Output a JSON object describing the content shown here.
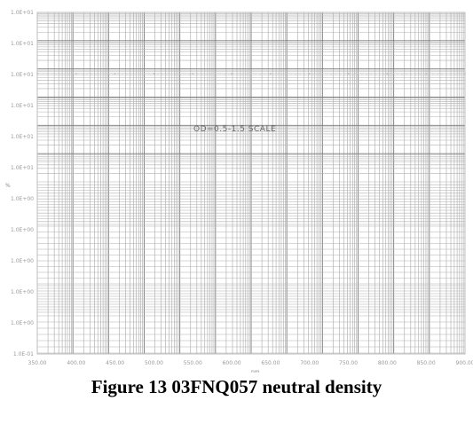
{
  "caption": "Figure 13 03FNQ057 neutral density",
  "chart_data": {
    "type": "line",
    "title": "",
    "annotation": "OD=0.5-1.5 SCALE",
    "xlabel": "nm",
    "ylabel": "%",
    "x_ticks": [
      "350.00",
      "400.00",
      "450.00",
      "500.00",
      "550.00",
      "600.00",
      "650.00",
      "700.00",
      "750.00",
      "800.00",
      "850.00",
      "900.00"
    ],
    "y_ticks": [
      "1.0E+01",
      "1.0E+01",
      "1.0E+01",
      "1.0E+01",
      "1.0E+01",
      "1.0E+01",
      "1.0E+00",
      "1.0E+00",
      "1.0E+00",
      "1.0E+00",
      "1.0E+00",
      "1.0E-01"
    ],
    "xlim": [
      350,
      900
    ],
    "grid": true,
    "series": [
      {
        "x": [
          350,
          400,
          450,
          500,
          550,
          600,
          650,
          700,
          750,
          800,
          850,
          900
        ],
        "y": [
          1.9,
          1.9,
          1.9,
          1.9,
          1.9,
          1.9,
          1.9,
          1.9,
          1.9,
          1.9,
          1.9,
          1.9
        ]
      }
    ]
  }
}
